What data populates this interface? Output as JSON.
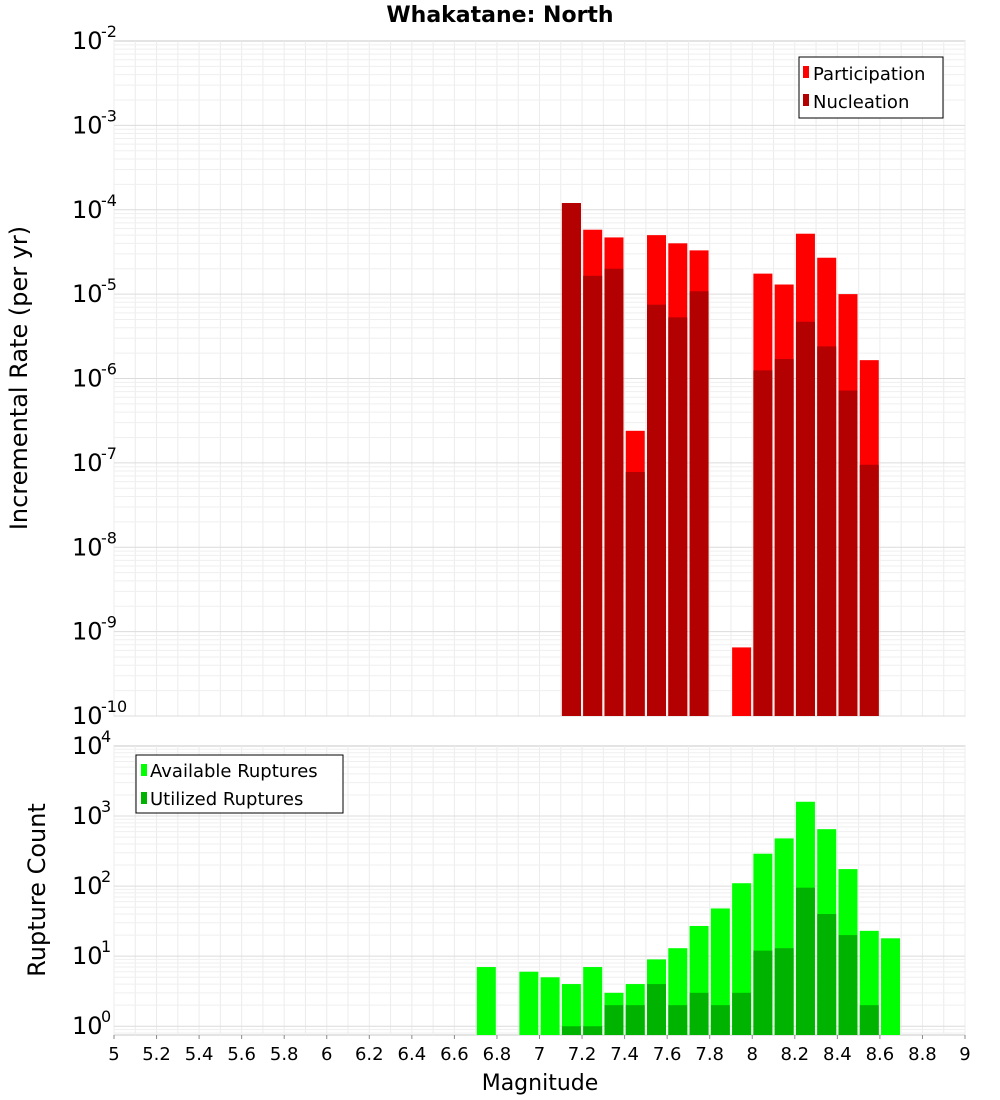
{
  "title": "Whakatane: North",
  "chart_data": [
    {
      "type": "bar",
      "ylabel": "Incremental Rate (per yr)",
      "yscale": "log",
      "ylim": [
        1e-10,
        0.01
      ],
      "xlim": [
        5,
        9
      ],
      "ytick_exponents": [
        "-10",
        "-9",
        "-8",
        "-7",
        "-6",
        "-5",
        "-4",
        "-3",
        "-2"
      ],
      "legend": {
        "placement": "top-right",
        "entries": [
          "Participation",
          "Nucleation"
        ]
      },
      "series": [
        {
          "name": "Participation",
          "color": "#ff0000",
          "x": [
            7.15,
            7.25,
            7.35,
            7.45,
            7.55,
            7.65,
            7.75,
            7.95,
            8.05,
            8.15,
            8.25,
            8.35,
            8.45,
            8.55
          ],
          "values": [
            0.00012,
            5.8e-05,
            4.7e-05,
            2.4e-07,
            5e-05,
            4e-05,
            3.3e-05,
            6.5e-10,
            1.75e-05,
            1.3e-05,
            5.2e-05,
            2.7e-05,
            1e-05,
            1.65e-06
          ]
        },
        {
          "name": "Nucleation",
          "color": "#b30000",
          "x": [
            7.15,
            7.25,
            7.35,
            7.45,
            7.55,
            7.65,
            7.75,
            8.05,
            8.15,
            8.25,
            8.35,
            8.45,
            8.55
          ],
          "values": [
            0.00012,
            1.65e-05,
            2e-05,
            7.8e-08,
            7.5e-06,
            5.3e-06,
            1.08e-05,
            1.25e-06,
            1.7e-06,
            4.7e-06,
            2.4e-06,
            7.2e-07,
            9.5e-08
          ]
        }
      ]
    },
    {
      "type": "bar",
      "ylabel": "Rupture Count",
      "xlabel": "Magnitude",
      "yscale": "log",
      "ylim": [
        0.75,
        10000
      ],
      "xlim": [
        5,
        9
      ],
      "ytick_exponents": [
        "0",
        "1",
        "2",
        "3",
        "4"
      ],
      "xtick_labels": [
        "5",
        "5.2",
        "5.4",
        "5.6",
        "5.8",
        "6",
        "6.2",
        "6.4",
        "6.6",
        "6.8",
        "7",
        "7.2",
        "7.4",
        "7.6",
        "7.8",
        "8",
        "8.2",
        "8.4",
        "8.6",
        "8.8",
        "9"
      ],
      "legend": {
        "placement": "top-left",
        "entries": [
          "Available Ruptures",
          "Utilized Ruptures"
        ]
      },
      "series": [
        {
          "name": "Available Ruptures",
          "color": "#00ff00",
          "x": [
            6.75,
            6.95,
            7.05,
            7.15,
            7.25,
            7.35,
            7.45,
            7.55,
            7.65,
            7.75,
            7.85,
            7.95,
            8.05,
            8.15,
            8.25,
            8.35,
            8.45,
            8.55,
            8.65
          ],
          "values": [
            7,
            6,
            5,
            4,
            7,
            3,
            4,
            9,
            13,
            27,
            48,
            110,
            290,
            480,
            1600,
            650,
            175,
            23,
            18
          ]
        },
        {
          "name": "Utilized Ruptures",
          "color": "#00b300",
          "x": [
            7.15,
            7.25,
            7.35,
            7.45,
            7.55,
            7.65,
            7.75,
            7.85,
            7.95,
            8.05,
            8.15,
            8.25,
            8.35,
            8.45,
            8.55
          ],
          "values": [
            1,
            1,
            2,
            2,
            4,
            2,
            3,
            2,
            3,
            12,
            13,
            95,
            40,
            20,
            2
          ]
        }
      ]
    }
  ]
}
